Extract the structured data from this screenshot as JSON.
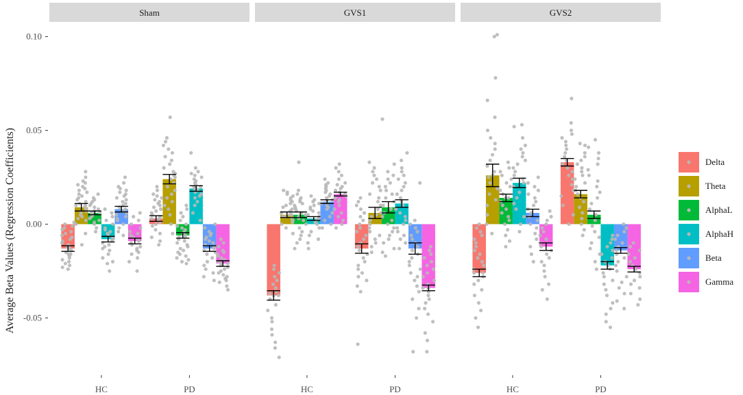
{
  "chart_data": {
    "type": "bar",
    "ylabel": "Average Beta Values (Regression Coefficients)",
    "xlabel": "",
    "ylim": [
      -0.0805,
      0.106
    ],
    "yticks": [
      0.1,
      0.05,
      0.0,
      -0.05
    ],
    "ytick_labels": [
      "0.10",
      "0.05",
      "0.00",
      "-0.05"
    ],
    "panels": [
      "Sham",
      "GVS1",
      "GVS2"
    ],
    "groups": [
      "HC",
      "PD"
    ],
    "legend": {
      "position": "right",
      "entries": [
        "Delta",
        "Theta",
        "AlphaL",
        "AlphaH",
        "Beta",
        "Gamma"
      ]
    },
    "colors": {
      "Delta": "#f8766d",
      "Theta": "#b79f00",
      "AlphaL": "#00ba38",
      "AlphaH": "#00bfc4",
      "Beta": "#619cff",
      "Gamma": "#f564e3",
      "point": "#b8b8b8",
      "strip": "#d9d9d9"
    },
    "means": {
      "Sham": {
        "HC": [
          -0.013,
          0.009,
          0.006,
          -0.008,
          0.008,
          -0.009
        ],
        "PD": [
          0.003,
          0.024,
          -0.006,
          0.019,
          -0.013,
          -0.021
        ]
      },
      "GVS1": {
        "HC": [
          -0.038,
          0.005,
          0.005,
          0.003,
          0.012,
          0.016
        ],
        "PD": [
          -0.013,
          0.006,
          0.009,
          0.011,
          -0.013,
          -0.034
        ]
      },
      "GVS2": {
        "HC": [
          -0.026,
          0.026,
          0.014,
          0.022,
          0.006,
          -0.012
        ],
        "PD": [
          0.033,
          0.016,
          0.005,
          -0.022,
          -0.014,
          -0.024
        ]
      }
    },
    "errors": {
      "Sham": {
        "HC": [
          0.0015,
          0.002,
          0.001,
          0.0015,
          0.0015,
          0.0015
        ],
        "PD": [
          0.0015,
          0.0025,
          0.0015,
          0.0015,
          0.0015,
          0.0015
        ]
      },
      "GVS1": {
        "HC": [
          0.0025,
          0.0015,
          0.0015,
          0.001,
          0.001,
          0.001
        ],
        "PD": [
          0.0025,
          0.003,
          0.003,
          0.002,
          0.003,
          0.0015
        ]
      },
      "GVS2": {
        "HC": [
          0.002,
          0.006,
          0.002,
          0.0025,
          0.002,
          0.002
        ],
        "PD": [
          0.002,
          0.002,
          0.002,
          0.002,
          0.0015,
          0.0015
        ]
      }
    },
    "points": {
      "Sham": {
        "HC": [
          [
            -0.024,
            -0.023,
            -0.022,
            -0.021,
            -0.02,
            -0.019,
            -0.018,
            -0.017,
            -0.016,
            -0.015,
            -0.014,
            -0.013,
            -0.012,
            -0.011,
            -0.01,
            -0.009,
            -0.008,
            -0.007,
            -0.006,
            -0.005,
            -0.004,
            -0.003,
            -0.002,
            -0.001,
            0.0,
            0.001,
            -0.016,
            -0.012
          ],
          [
            -0.011,
            -0.005,
            0.0,
            0.002,
            0.003,
            0.004,
            0.005,
            0.006,
            0.007,
            0.008,
            0.009,
            0.01,
            0.011,
            0.012,
            0.013,
            0.014,
            0.015,
            0.016,
            0.017,
            0.018,
            0.019,
            0.02,
            0.021,
            0.022,
            0.023,
            0.025,
            0.028,
            0.01
          ],
          [
            -0.004,
            -0.002,
            0.0,
            0.001,
            0.002,
            0.003,
            0.004,
            0.005,
            0.006,
            0.007,
            0.008,
            0.009,
            0.01,
            0.011,
            0.012,
            0.013,
            0.014,
            0.016,
            0.006,
            0.005
          ],
          [
            -0.025,
            -0.021,
            -0.02,
            -0.018,
            -0.016,
            -0.014,
            -0.013,
            -0.012,
            -0.011,
            -0.01,
            -0.009,
            -0.008,
            -0.007,
            -0.006,
            -0.005,
            -0.004,
            -0.003,
            -0.002,
            0.0,
            0.002,
            0.004,
            0.006,
            0.008
          ],
          [
            -0.006,
            -0.004,
            -0.002,
            0.0,
            0.002,
            0.003,
            0.004,
            0.005,
            0.006,
            0.007,
            0.008,
            0.009,
            0.01,
            0.011,
            0.012,
            0.013,
            0.014,
            0.015,
            0.016,
            0.017,
            0.018,
            0.019,
            0.02,
            0.022,
            0.025
          ],
          [
            -0.025,
            -0.02,
            -0.018,
            -0.016,
            -0.015,
            -0.014,
            -0.013,
            -0.012,
            -0.011,
            -0.01,
            -0.009,
            -0.008,
            -0.007,
            -0.006,
            -0.005,
            -0.004,
            -0.002,
            0.0,
            0.002,
            0.004,
            0.006
          ]
        ],
        "PD": [
          [
            -0.011,
            -0.009,
            -0.007,
            -0.005,
            -0.003,
            -0.001,
            0.0,
            0.001,
            0.002,
            0.003,
            0.004,
            0.005,
            0.006,
            0.007,
            0.008,
            0.009,
            0.01,
            0.011,
            0.012,
            0.013,
            0.014,
            0.015,
            0.016,
            0.018,
            0.02,
            0.003
          ],
          [
            -0.005,
            0.0,
            0.005,
            0.008,
            0.01,
            0.012,
            0.014,
            0.016,
            0.018,
            0.02,
            0.022,
            0.024,
            0.026,
            0.028,
            0.03,
            0.032,
            0.034,
            0.036,
            0.038,
            0.04,
            0.042,
            0.044,
            0.046,
            0.057,
            0.025,
            0.027
          ],
          [
            -0.021,
            -0.02,
            -0.019,
            -0.018,
            -0.017,
            -0.016,
            -0.015,
            -0.014,
            -0.013,
            -0.012,
            -0.011,
            -0.01,
            -0.009,
            -0.008,
            -0.007,
            -0.006,
            -0.005,
            -0.004,
            -0.003,
            -0.002,
            -0.001,
            0.0,
            0.002,
            0.004,
            0.006,
            0.008,
            0.01,
            -0.007
          ],
          [
            0.002,
            0.006,
            0.01,
            0.012,
            0.014,
            0.015,
            0.016,
            0.017,
            0.018,
            0.019,
            0.02,
            0.021,
            0.022,
            0.023,
            0.024,
            0.025,
            0.026,
            0.027,
            0.028,
            0.03,
            0.038,
            0.019,
            0.02
          ],
          [
            -0.03,
            -0.028,
            -0.026,
            -0.024,
            -0.022,
            -0.02,
            -0.018,
            -0.016,
            -0.015,
            -0.014,
            -0.013,
            -0.012,
            -0.011,
            -0.01,
            -0.009,
            -0.008,
            -0.007,
            -0.006,
            -0.005,
            -0.004,
            -0.002,
            0.0
          ],
          [
            -0.035,
            -0.033,
            -0.031,
            -0.03,
            -0.029,
            -0.028,
            -0.027,
            -0.026,
            -0.025,
            -0.024,
            -0.023,
            -0.022,
            -0.021,
            -0.02,
            -0.019,
            -0.018,
            -0.017,
            -0.016,
            -0.015,
            -0.014,
            -0.012,
            -0.01,
            -0.008,
            -0.021
          ]
        ]
      },
      "GVS1": {
        "HC": [
          [
            -0.071,
            -0.066,
            -0.063,
            -0.059,
            -0.056,
            -0.052,
            -0.05,
            -0.046,
            -0.043,
            -0.04,
            -0.038,
            -0.036,
            -0.034,
            -0.032,
            -0.03,
            -0.028,
            -0.026,
            -0.024,
            -0.022,
            -0.038,
            -0.037
          ],
          [
            -0.005,
            -0.002,
            0.0,
            0.001,
            0.002,
            0.003,
            0.004,
            0.005,
            0.006,
            0.007,
            0.008,
            0.009,
            0.01,
            0.011,
            0.012,
            0.013,
            0.014,
            0.015,
            0.016,
            0.017,
            0.018,
            0.005,
            0.004
          ],
          [
            -0.013,
            -0.01,
            -0.008,
            -0.006,
            -0.004,
            -0.002,
            0.0,
            0.002,
            0.003,
            0.004,
            0.005,
            0.006,
            0.007,
            0.008,
            0.009,
            0.01,
            0.011,
            0.012,
            0.013,
            0.014,
            0.016,
            0.018,
            0.033
          ],
          [
            -0.013,
            -0.01,
            -0.008,
            -0.006,
            -0.004,
            -0.002,
            0.0,
            0.001,
            0.002,
            0.003,
            0.004,
            0.005,
            0.006,
            0.007,
            0.008,
            0.009,
            0.01,
            0.011,
            0.012,
            0.013,
            0.015
          ],
          [
            -0.002,
            0.0,
            0.002,
            0.004,
            0.006,
            0.008,
            0.009,
            0.01,
            0.011,
            0.012,
            0.013,
            0.014,
            0.015,
            0.016,
            0.017,
            0.018,
            0.019,
            0.02,
            0.021,
            0.022,
            0.024
          ],
          [
            -0.002,
            0.0,
            0.002,
            0.004,
            0.006,
            0.008,
            0.01,
            0.012,
            0.013,
            0.014,
            0.015,
            0.016,
            0.017,
            0.018,
            0.019,
            0.02,
            0.021,
            0.022,
            0.024,
            0.026,
            0.028,
            0.03,
            0.032
          ]
        ],
        "PD": [
          [
            -0.064,
            -0.036,
            -0.033,
            -0.03,
            -0.028,
            -0.026,
            -0.024,
            -0.022,
            -0.02,
            -0.018,
            -0.016,
            -0.014,
            -0.012,
            -0.01,
            -0.008,
            -0.006,
            -0.004,
            -0.002,
            0.0,
            0.002,
            0.004,
            0.006,
            0.008,
            0.01,
            0.012,
            0.014
          ],
          [
            -0.015,
            -0.012,
            -0.01,
            -0.008,
            -0.006,
            -0.004,
            -0.002,
            0.0,
            0.002,
            0.004,
            0.006,
            0.008,
            0.01,
            0.012,
            0.014,
            0.016,
            0.018,
            0.02,
            0.022,
            0.024,
            0.026,
            0.028,
            0.03,
            0.033,
            0.005
          ],
          [
            -0.017,
            -0.015,
            -0.013,
            -0.01,
            -0.008,
            -0.006,
            -0.004,
            -0.002,
            0.0,
            0.002,
            0.004,
            0.006,
            0.008,
            0.01,
            0.012,
            0.014,
            0.016,
            0.018,
            0.02,
            0.022,
            0.024,
            0.026,
            0.028,
            0.032,
            0.056
          ],
          [
            -0.013,
            -0.01,
            -0.008,
            -0.006,
            -0.004,
            -0.002,
            0.0,
            0.002,
            0.004,
            0.006,
            0.008,
            0.01,
            0.012,
            0.014,
            0.016,
            0.018,
            0.02,
            0.022,
            0.024,
            0.026,
            0.028,
            0.03,
            0.034,
            0.038
          ],
          [
            -0.068,
            -0.05,
            -0.045,
            -0.04,
            -0.036,
            -0.033,
            -0.03,
            -0.028,
            -0.026,
            -0.024,
            -0.022,
            -0.02,
            -0.018,
            -0.016,
            -0.014,
            -0.012,
            -0.01,
            -0.008,
            -0.006,
            -0.004,
            -0.002,
            0.0,
            0.002,
            0.022
          ],
          [
            -0.068,
            -0.062,
            -0.058,
            -0.052,
            -0.048,
            -0.045,
            -0.042,
            -0.04,
            -0.038,
            -0.036,
            -0.034,
            -0.032,
            -0.03,
            -0.028,
            -0.026,
            -0.024,
            -0.022,
            -0.02,
            -0.018,
            -0.016,
            -0.014,
            -0.012,
            -0.034
          ]
        ]
      },
      "GVS2": {
        "HC": [
          [
            -0.055,
            -0.05,
            -0.046,
            -0.042,
            -0.038,
            -0.035,
            -0.032,
            -0.03,
            -0.028,
            -0.026,
            -0.024,
            -0.022,
            -0.02,
            -0.018,
            -0.016,
            -0.014,
            -0.012,
            -0.01,
            -0.008,
            -0.006,
            -0.004,
            -0.002,
            0.0,
            -0.026
          ],
          [
            -0.005,
            0.0,
            0.005,
            0.01,
            0.013,
            0.016,
            0.019,
            0.022,
            0.025,
            0.028,
            0.031,
            0.034,
            0.037,
            0.04,
            0.043,
            0.046,
            0.05,
            0.057,
            0.066,
            0.078,
            0.1,
            0.101,
            0.026
          ],
          [
            -0.012,
            -0.009,
            -0.006,
            -0.003,
            0.0,
            0.002,
            0.004,
            0.006,
            0.008,
            0.01,
            0.012,
            0.014,
            0.016,
            0.018,
            0.02,
            0.022,
            0.024,
            0.026,
            0.028,
            0.03,
            0.033,
            0.014
          ],
          [
            -0.004,
            0.0,
            0.004,
            0.008,
            0.011,
            0.014,
            0.017,
            0.02,
            0.022,
            0.024,
            0.026,
            0.028,
            0.03,
            0.032,
            0.034,
            0.036,
            0.038,
            0.04,
            0.042,
            0.046,
            0.053,
            0.052
          ],
          [
            -0.02,
            -0.016,
            -0.012,
            -0.008,
            -0.005,
            -0.002,
            0.0,
            0.002,
            0.004,
            0.006,
            0.008,
            0.01,
            0.012,
            0.014,
            0.016,
            0.018,
            0.02,
            0.022,
            0.025
          ],
          [
            -0.04,
            -0.035,
            -0.032,
            -0.028,
            -0.025,
            -0.022,
            -0.02,
            -0.018,
            -0.016,
            -0.014,
            -0.012,
            -0.01,
            -0.008,
            -0.006,
            -0.004,
            -0.002,
            0.0,
            0.002,
            0.004,
            0.007
          ]
        ],
        "PD": [
          [
            0.0,
            0.005,
            0.01,
            0.015,
            0.018,
            0.021,
            0.024,
            0.026,
            0.028,
            0.03,
            0.032,
            0.034,
            0.036,
            0.038,
            0.04,
            0.042,
            0.044,
            0.046,
            0.048,
            0.05,
            0.054,
            0.067
          ],
          [
            -0.006,
            -0.003,
            0.0,
            0.003,
            0.006,
            0.009,
            0.012,
            0.014,
            0.016,
            0.018,
            0.02,
            0.022,
            0.024,
            0.026,
            0.028,
            0.03,
            0.032,
            0.034,
            0.036,
            0.038,
            0.042,
            0.043
          ],
          [
            -0.024,
            -0.02,
            -0.016,
            -0.013,
            -0.01,
            -0.007,
            -0.004,
            -0.001,
            0.002,
            0.005,
            0.008,
            0.011,
            0.014,
            0.017,
            0.02,
            0.023,
            0.026,
            0.029,
            0.032,
            0.035,
            0.038,
            0.041,
            0.045
          ],
          [
            -0.055,
            -0.052,
            -0.048,
            -0.045,
            -0.042,
            -0.038,
            -0.035,
            -0.032,
            -0.03,
            -0.028,
            -0.026,
            -0.024,
            -0.022,
            -0.02,
            -0.018,
            -0.016,
            -0.014,
            -0.012,
            -0.01,
            -0.008,
            -0.006
          ],
          [
            -0.045,
            -0.041,
            -0.037,
            -0.034,
            -0.031,
            -0.028,
            -0.025,
            -0.022,
            -0.02,
            -0.018,
            -0.016,
            -0.014,
            -0.012,
            -0.01,
            -0.008,
            -0.006,
            -0.004,
            -0.002,
            0.0
          ],
          [
            -0.043,
            -0.04,
            -0.037,
            -0.034,
            -0.032,
            -0.03,
            -0.028,
            -0.026,
            -0.024,
            -0.022,
            -0.02,
            -0.018,
            -0.016,
            -0.014,
            -0.012,
            -0.01
          ]
        ]
      }
    }
  }
}
